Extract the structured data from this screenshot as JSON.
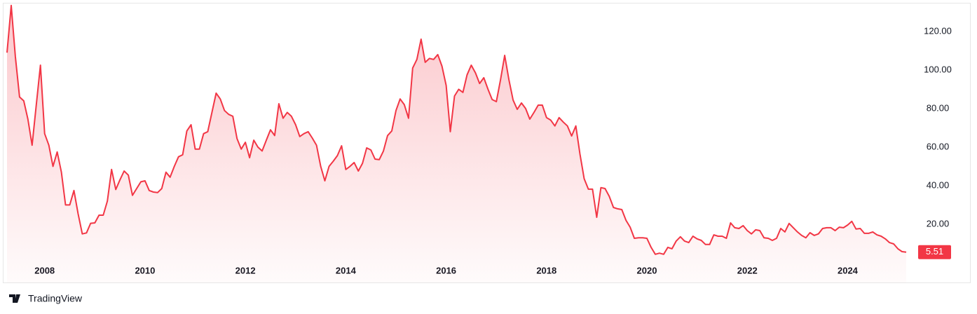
{
  "chart_data": {
    "type": "area",
    "watermark": "TradingView",
    "categories": [
      null,
      null,
      null,
      null,
      null,
      null,
      null,
      null,
      null,
      "2008",
      null,
      null,
      null,
      null,
      null,
      null,
      null,
      null,
      null,
      null,
      null,
      null,
      null,
      null,
      null,
      null,
      null,
      null,
      null,
      null,
      null,
      null,
      null,
      "2010",
      null,
      null,
      null,
      null,
      null,
      null,
      null,
      null,
      null,
      null,
      null,
      null,
      null,
      null,
      null,
      null,
      null,
      null,
      null,
      null,
      null,
      null,
      null,
      "2012",
      null,
      null,
      null,
      null,
      null,
      null,
      null,
      null,
      null,
      null,
      null,
      null,
      null,
      null,
      null,
      null,
      null,
      null,
      null,
      null,
      null,
      null,
      null,
      "2014",
      null,
      null,
      null,
      null,
      null,
      null,
      null,
      null,
      null,
      null,
      null,
      null,
      null,
      null,
      null,
      null,
      null,
      null,
      null,
      null,
      null,
      null,
      null,
      "2016",
      null,
      null,
      null,
      null,
      null,
      null,
      null,
      null,
      null,
      null,
      null,
      null,
      null,
      null,
      null,
      null,
      null,
      null,
      null,
      null,
      null,
      null,
      null,
      "2018",
      null,
      null,
      null,
      null,
      null,
      null,
      null,
      null,
      null,
      null,
      null,
      null,
      null,
      null,
      null,
      null,
      null,
      null,
      null,
      null,
      null,
      null,
      null,
      "2020",
      null,
      null,
      null,
      null,
      null,
      null,
      null,
      null,
      null,
      null,
      null,
      null,
      null,
      null,
      null,
      null,
      null,
      null,
      null,
      null,
      null,
      null,
      null,
      "2022",
      null,
      null,
      null,
      null,
      null,
      null,
      null,
      null,
      null,
      null,
      null,
      null,
      null,
      null,
      null,
      null,
      null,
      null,
      null,
      null,
      null,
      null,
      null,
      "2024",
      null,
      null,
      null,
      null,
      null,
      null,
      null,
      null,
      null,
      null,
      null,
      null,
      null,
      null
    ],
    "series": [
      {
        "color": "#f23645",
        "values": [
          109,
          133.5,
          107,
          86,
          84,
          74.5,
          61,
          82,
          102.5,
          67,
          61,
          50,
          57.5,
          47,
          30,
          30,
          37.5,
          25.5,
          15,
          15.5,
          20.5,
          20.7,
          24.7,
          24.7,
          32,
          48.4,
          38,
          43,
          47.6,
          45.5,
          35,
          38.5,
          42,
          42.5,
          37.5,
          36.7,
          36.4,
          38.5,
          47,
          44.4,
          50,
          55,
          56,
          68.4,
          71.6,
          59,
          59,
          67,
          68,
          78,
          88,
          85,
          79,
          77,
          76,
          64.4,
          59,
          62.5,
          54.5,
          63.6,
          60,
          58,
          63.6,
          69,
          66,
          82.5,
          75,
          78,
          76,
          71.6,
          65.5,
          67,
          68,
          64.7,
          61,
          50,
          42.5,
          50,
          52.7,
          55.6,
          60.7,
          48.4,
          50,
          52,
          47.6,
          51.6,
          59.6,
          58.5,
          53.8,
          53.5,
          58,
          66,
          68.4,
          79,
          85,
          82,
          75,
          101,
          105.5,
          116,
          104,
          106,
          105.5,
          108,
          102,
          92,
          68,
          86.5,
          90,
          88.4,
          97.5,
          102.5,
          98.5,
          93,
          96,
          90,
          84.7,
          83.6,
          95,
          107.6,
          95,
          84.4,
          79.6,
          82.9,
          80,
          74.5,
          78,
          81.8,
          81.8,
          75.3,
          74,
          71,
          75.3,
          73,
          71,
          65.8,
          71,
          56.4,
          43.6,
          38.2,
          38.2,
          23.6,
          39,
          38.5,
          34.5,
          28.7,
          28,
          27.6,
          22,
          18.5,
          12.7,
          13,
          13,
          12.7,
          8,
          4.4,
          5,
          4.4,
          8,
          7.3,
          11.3,
          13.5,
          11.3,
          10.5,
          13.8,
          12.4,
          11.6,
          9.5,
          9.5,
          14.5,
          13.8,
          13.8,
          12.7,
          20.7,
          18.2,
          17.8,
          19.3,
          16.7,
          15,
          17.1,
          16.7,
          13,
          12.7,
          11.6,
          12.7,
          17.8,
          16,
          20.4,
          18.2,
          16,
          14.2,
          13,
          15.6,
          14.2,
          15,
          17.8,
          18.2,
          18.2,
          16.7,
          18.5,
          18.2,
          19.6,
          21.5,
          17.5,
          17.8,
          15.3,
          15.3,
          16,
          14.5,
          13.8,
          12.4,
          10.5,
          9.8,
          7.3,
          5.8,
          5.51
        ]
      }
    ],
    "ylim": [
      -10.2,
      134.5
    ],
    "yticks": [
      {
        "value": 20,
        "label": "20.00"
      },
      {
        "value": 40,
        "label": "40.00"
      },
      {
        "value": 60,
        "label": "60.00"
      },
      {
        "value": 80,
        "label": "80.00"
      },
      {
        "value": 100,
        "label": "100.00"
      },
      {
        "value": 120,
        "label": "120.00"
      }
    ]
  }
}
